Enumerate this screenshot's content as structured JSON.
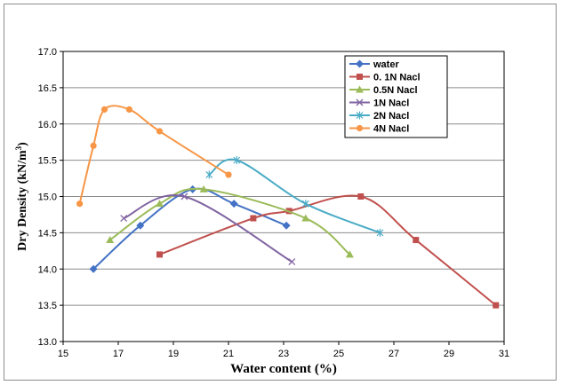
{
  "chart_data": {
    "type": "line",
    "xlabel": "Water content (%)",
    "ylabel_main": "Dry Density (kN/m",
    "ylabel_sup": "3",
    "ylabel_close": ")",
    "xlim": [
      15,
      31
    ],
    "ylim": [
      13.0,
      17.0
    ],
    "x_ticks": [
      15,
      17,
      19,
      21,
      23,
      25,
      27,
      29,
      31
    ],
    "y_ticks": [
      "13.0",
      "13.5",
      "14.0",
      "14.5",
      "15.0",
      "15.5",
      "16.0",
      "16.5",
      "17.0"
    ],
    "grid": "horizontal",
    "legend_position": "top-right",
    "series": [
      {
        "name": "water",
        "color": "#4472C4",
        "marker": "diamond",
        "x": [
          16.1,
          17.8,
          19.7,
          21.2,
          23.1
        ],
        "y": [
          14.0,
          14.6,
          15.1,
          14.9,
          14.6
        ]
      },
      {
        "name": "0. 1N  Nacl",
        "color": "#C0504D",
        "marker": "square",
        "x": [
          18.5,
          21.9,
          23.2,
          25.8,
          27.8,
          30.7
        ],
        "y": [
          14.2,
          14.7,
          14.8,
          15.0,
          14.4,
          13.5
        ]
      },
      {
        "name": "0.5N Nacl",
        "color": "#9BBB59",
        "marker": "triangle",
        "x": [
          16.7,
          18.5,
          20.1,
          23.8,
          25.4
        ],
        "y": [
          14.4,
          14.9,
          15.1,
          14.7,
          14.2
        ]
      },
      {
        "name": "1N Nacl",
        "color": "#8064A2",
        "marker": "x",
        "x": [
          17.2,
          19.4,
          23.3
        ],
        "y": [
          14.7,
          15.0,
          14.1
        ]
      },
      {
        "name": "2N Nacl",
        "color": "#4BACC6",
        "marker": "star",
        "x": [
          20.3,
          21.3,
          23.8,
          26.5
        ],
        "y": [
          15.3,
          15.5,
          14.9,
          14.5
        ]
      },
      {
        "name": "4N Nacl",
        "color": "#F79646",
        "marker": "circle",
        "x": [
          15.6,
          16.1,
          16.5,
          17.4,
          18.5,
          21.0
        ],
        "y": [
          14.9,
          15.7,
          16.2,
          16.2,
          15.9,
          15.3
        ]
      }
    ]
  }
}
